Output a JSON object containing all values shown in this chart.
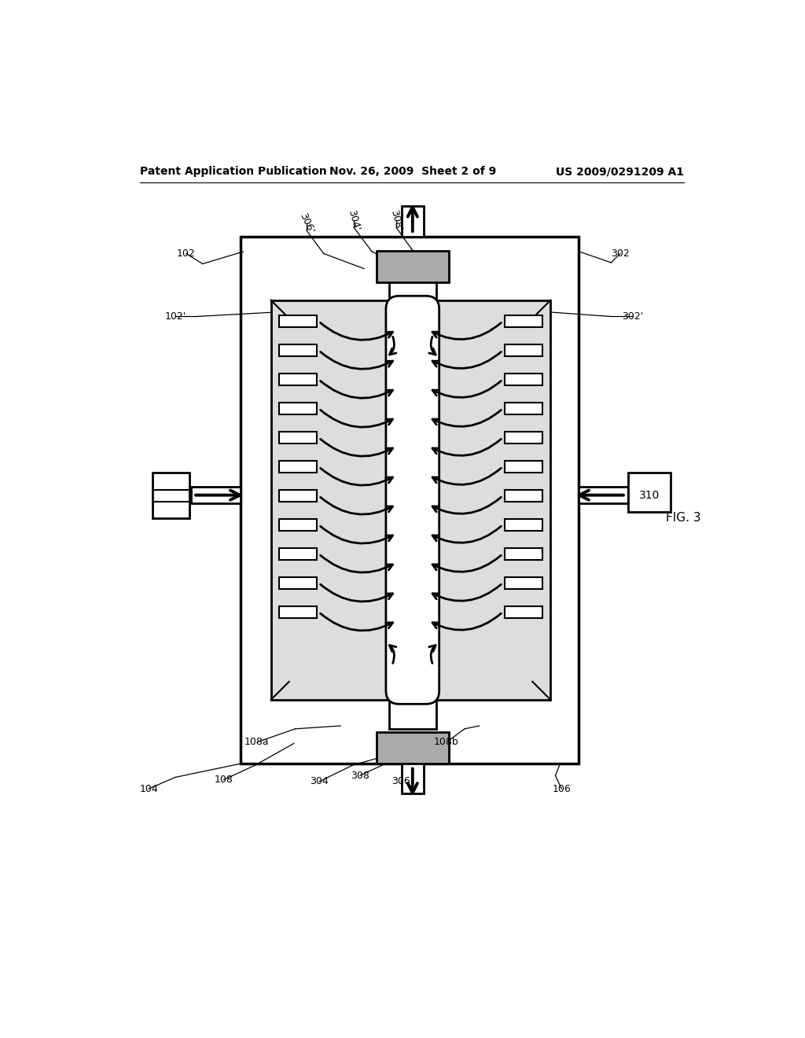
{
  "header_left": "Patent Application Publication",
  "header_center": "Nov. 26, 2009  Sheet 2 of 9",
  "header_right": "US 2009/0291209 A1",
  "fig_label": "FIG. 3",
  "box310_label": "310",
  "bg_color": "#ffffff",
  "line_color": "#000000"
}
